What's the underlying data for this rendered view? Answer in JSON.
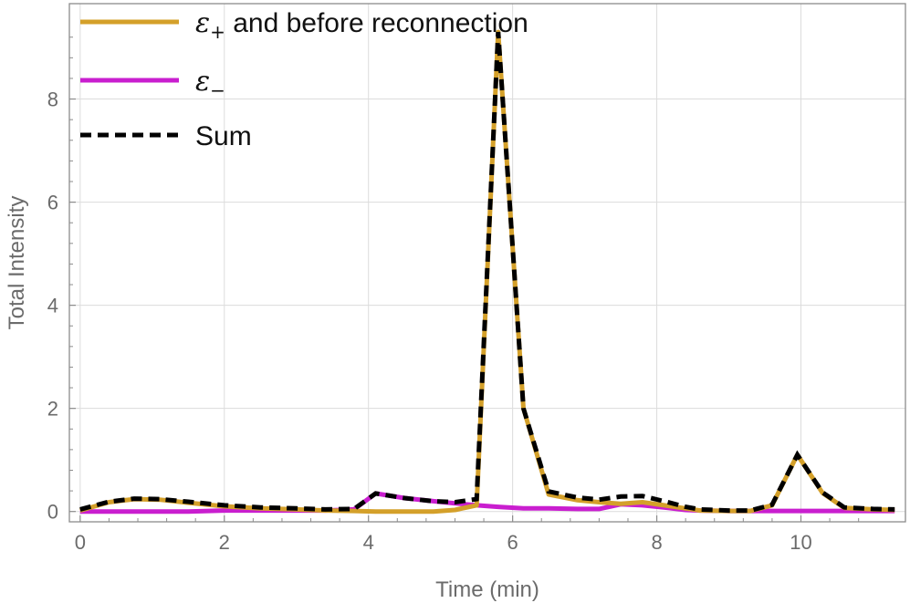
{
  "chart_data": {
    "type": "line",
    "xlabel": "Time (min)",
    "ylabel": "Total Intensity",
    "xlim": [
      -0.15,
      11.45
    ],
    "ylim": [
      -0.2,
      9.85
    ],
    "xticks": [
      0,
      2,
      4,
      6,
      8,
      10
    ],
    "yticks": [
      0,
      2,
      4,
      6,
      8
    ],
    "grid": true,
    "legend_position": "top-left",
    "x": [
      0,
      0.4,
      0.75,
      1.1,
      1.5,
      2.0,
      2.5,
      3.0,
      3.4,
      3.8,
      4.1,
      4.5,
      4.9,
      5.2,
      5.5,
      5.8,
      6.15,
      6.5,
      6.9,
      7.2,
      7.5,
      7.8,
      8.1,
      8.4,
      8.6,
      9.0,
      9.3,
      9.6,
      9.95,
      10.3,
      10.6,
      11.0,
      11.3
    ],
    "series": [
      {
        "name_symbol": "ε",
        "name_sub": "+",
        "name_rest": " and before reconnection",
        "color": "#d4a02a",
        "style": "solid",
        "values": [
          0.02,
          0.18,
          0.24,
          0.23,
          0.17,
          0.1,
          0.06,
          0.04,
          0.02,
          0.01,
          0.0,
          0.0,
          0.0,
          0.03,
          0.12,
          9.3,
          2.0,
          0.33,
          0.22,
          0.18,
          0.15,
          0.18,
          0.12,
          0.06,
          0.02,
          0.01,
          0.01,
          0.12,
          1.1,
          0.36,
          0.07,
          0.04,
          0.03
        ]
      },
      {
        "name_symbol": "ε",
        "name_sub": "−",
        "name_rest": "",
        "color": "#c91ecf",
        "style": "solid",
        "values": [
          0,
          0,
          0,
          0,
          0,
          0.02,
          0.02,
          0.02,
          0.02,
          0.04,
          0.35,
          0.26,
          0.2,
          0.16,
          0.12,
          0.09,
          0.06,
          0.06,
          0.05,
          0.05,
          0.14,
          0.12,
          0.08,
          0.03,
          0.02,
          0.01,
          0.01,
          0.01,
          0.01,
          0.01,
          0.01,
          0.01,
          0.01
        ]
      },
      {
        "name_symbol": "",
        "name_sub": "",
        "name_rest": "Sum",
        "color": "#000000",
        "style": "dashed",
        "values": [
          0.04,
          0.19,
          0.25,
          0.24,
          0.19,
          0.12,
          0.08,
          0.06,
          0.04,
          0.05,
          0.35,
          0.26,
          0.2,
          0.18,
          0.24,
          9.3,
          2.0,
          0.39,
          0.27,
          0.23,
          0.29,
          0.3,
          0.2,
          0.09,
          0.04,
          0.02,
          0.02,
          0.13,
          1.1,
          0.37,
          0.08,
          0.05,
          0.04
        ]
      }
    ]
  }
}
